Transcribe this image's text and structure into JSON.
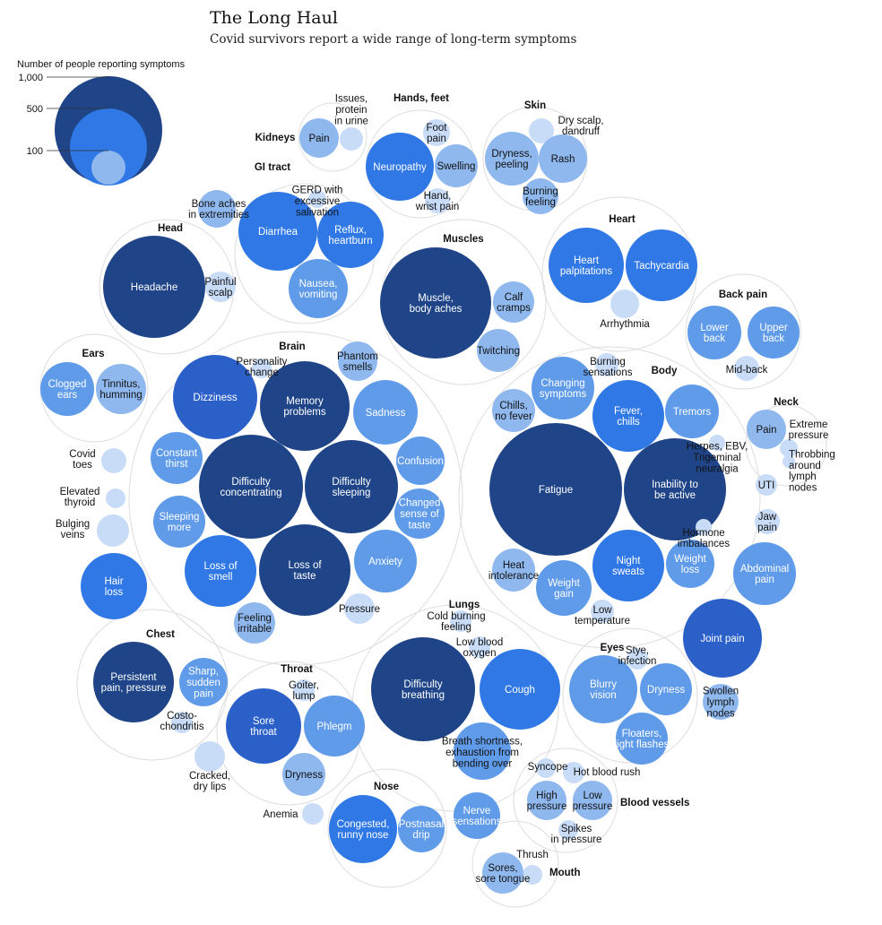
{
  "title": "The Long Haul",
  "subtitle": "Covid survivors report a wide range of long-term symptoms",
  "chart_data": {
    "type": "bubble",
    "legend": {
      "title": "Number of people reporting symptoms",
      "levels": [
        {
          "label": "1,000",
          "value": 1000
        },
        {
          "label": "500",
          "value": 500
        },
        {
          "label": "100",
          "value": 100
        }
      ]
    },
    "colors": {
      "darkest": "#1f4588",
      "dark": "#2b60c9",
      "medium": "#2f78e5",
      "light": "#5f9be8",
      "lighter": "#8fb8ee",
      "lightest": "#c8dcf7",
      "group_outline": "#dddddd",
      "label_dark": "#111111",
      "label_light": "#ffffff"
    },
    "groups": [
      {
        "name": "Kidneys",
        "label": "Kidneys",
        "symptoms": [
          {
            "name": "Pain",
            "lines": [
              "Pain"
            ],
            "value": 120
          },
          {
            "name": "Issues, protein in urine",
            "lines": [
              "Issues,",
              "protein",
              "in urine"
            ],
            "value": 50
          }
        ]
      },
      {
        "name": "Hands, feet",
        "label": "Hands, feet",
        "symptoms": [
          {
            "name": "Neuropathy",
            "lines": [
              "Neuropathy"
            ],
            "value": 500
          },
          {
            "name": "Foot pain",
            "lines": [
              "Foot",
              "pain"
            ],
            "value": 80
          },
          {
            "name": "Swelling",
            "lines": [
              "Swelling"
            ],
            "value": 190
          },
          {
            "name": "Hand, wrist pain",
            "lines": [
              "Hand,",
              "wrist pain"
            ],
            "value": 60
          }
        ]
      },
      {
        "name": "Skin",
        "label": "Skin",
        "symptoms": [
          {
            "name": "Dry scalp, dandruff",
            "lines": [
              "Dry scalp,",
              "dandruff"
            ],
            "value": 60
          },
          {
            "name": "Dryness, peeling",
            "lines": [
              "Dryness,",
              "peeling"
            ],
            "value": 230
          },
          {
            "name": "Rash",
            "lines": [
              "Rash"
            ],
            "value": 220
          },
          {
            "name": "Burning feeling",
            "lines": [
              "Burning",
              "feeling"
            ],
            "value": 130
          }
        ]
      },
      {
        "name": "GI tract",
        "label": "GI tract",
        "symptoms": [
          {
            "name": "Diarrhea",
            "lines": [
              "Diarrhea"
            ],
            "value": 620
          },
          {
            "name": "Reflux, heartburn",
            "lines": [
              "Reflux,",
              "heartburn"
            ],
            "value": 500
          },
          {
            "name": "GERD with excessive salivation",
            "lines": [
              "GERD with",
              "excessive",
              "salivation"
            ],
            "value": 50
          },
          {
            "name": "Nausea, vomiting",
            "lines": [
              "Nausea,",
              "vomiting"
            ],
            "value": 420
          }
        ]
      },
      {
        "name": "Head",
        "label": "Head",
        "symptoms": [
          {
            "name": "Bone aches in extremities",
            "lines": [
              "Bone aches",
              "in extremities"
            ],
            "value": 170
          },
          {
            "name": "Headache",
            "lines": [
              "Headache"
            ],
            "value": 1100
          },
          {
            "name": "Painful scalp",
            "lines": [
              "Painful",
              "scalp"
            ],
            "value": 60
          }
        ]
      },
      {
        "name": "Muscles",
        "label": "Muscles",
        "symptoms": [
          {
            "name": "Muscle, body aches",
            "lines": [
              "Muscle,",
              "body aches"
            ],
            "value": 1200
          },
          {
            "name": "Calf cramps",
            "lines": [
              "Calf",
              "cramps"
            ],
            "value": 200
          },
          {
            "name": "Twitching",
            "lines": [
              "Twitching"
            ],
            "value": 200
          }
        ]
      },
      {
        "name": "Heart",
        "label": "Heart",
        "symptoms": [
          {
            "name": "Heart palpitations",
            "lines": [
              "Heart",
              "palpitations"
            ],
            "value": 650
          },
          {
            "name": "Tachycardia",
            "lines": [
              "Tachycardia"
            ],
            "value": 520
          },
          {
            "name": "Arrhythmia",
            "lines": [
              "Arrhythmia"
            ],
            "value": 90
          }
        ]
      },
      {
        "name": "Back pain",
        "label": "Back pain",
        "symptoms": [
          {
            "name": "Lower back",
            "lines": [
              "Lower",
              "back"
            ],
            "value": 340
          },
          {
            "name": "Upper back",
            "lines": [
              "Upper",
              "back"
            ],
            "value": 320
          },
          {
            "name": "Mid-back",
            "lines": [
              "Mid-back"
            ],
            "value": 80
          }
        ]
      },
      {
        "name": "Ears",
        "label": "Ears",
        "symptoms": [
          {
            "name": "Clogged ears",
            "lines": [
              "Clogged",
              "ears"
            ],
            "value": 280
          },
          {
            "name": "Tinnitus, humming",
            "lines": [
              "Tinnitus,",
              "humming"
            ],
            "value": 240
          }
        ]
      },
      {
        "name": "Brain",
        "label": "Brain",
        "symptoms": [
          {
            "name": "Personality change",
            "lines": [
              "Personality",
              "change"
            ],
            "value": 60
          },
          {
            "name": "Phantom smells",
            "lines": [
              "Phantom",
              "smells"
            ],
            "value": 180
          },
          {
            "name": "Dizziness",
            "lines": [
              "Dizziness"
            ],
            "value": 800
          },
          {
            "name": "Memory problems",
            "lines": [
              "Memory",
              "problems"
            ],
            "value": 860
          },
          {
            "name": "Sadness",
            "lines": [
              "Sadness"
            ],
            "value": 480
          },
          {
            "name": "Constant thirst",
            "lines": [
              "Constant",
              "thirst"
            ],
            "value": 260
          },
          {
            "name": "Difficulty concentrating",
            "lines": [
              "Difficulty",
              "concentrating"
            ],
            "value": 1080
          },
          {
            "name": "Difficulty sleeping",
            "lines": [
              "Difficulty",
              "sleeping"
            ],
            "value": 950
          },
          {
            "name": "Confusion",
            "lines": [
              "Confusion"
            ],
            "value": 260
          },
          {
            "name": "Sleeping more",
            "lines": [
              "Sleeping",
              "more"
            ],
            "value": 260
          },
          {
            "name": "Changed sense of taste",
            "lines": [
              "Changed",
              "sense of",
              "taste"
            ],
            "value": 260
          },
          {
            "name": "Loss of smell",
            "lines": [
              "Loss of",
              "smell"
            ],
            "value": 590
          },
          {
            "name": "Loss of taste",
            "lines": [
              "Loss of",
              "taste"
            ],
            "value": 930
          },
          {
            "name": "Anxiety",
            "lines": [
              "Anxiety"
            ],
            "value": 460
          },
          {
            "name": "Feeling irritable",
            "lines": [
              "Feeling",
              "irritable"
            ],
            "value": 180
          },
          {
            "name": "Pressure",
            "lines": [
              "Pressure"
            ],
            "value": 80
          }
        ]
      },
      {
        "name": "Body",
        "label": "Body",
        "symptoms": [
          {
            "name": "Burning sensations",
            "lines": [
              "Burning",
              "sensations"
            ],
            "value": 60
          },
          {
            "name": "Changing symptoms",
            "lines": [
              "Changing",
              "symptoms"
            ],
            "value": 430
          },
          {
            "name": "Chills, no fever",
            "lines": [
              "Chills,",
              "no fever"
            ],
            "value": 200
          },
          {
            "name": "Fever, chills",
            "lines": [
              "Fever,",
              "chills"
            ],
            "value": 560
          },
          {
            "name": "Tremors",
            "lines": [
              "Tremors"
            ],
            "value": 300
          },
          {
            "name": "Herpes, EBV, Trigeminal neuralgia",
            "lines": [
              "Herpes, EBV,",
              "Trigeminal",
              "neuralgia"
            ],
            "value": 40
          },
          {
            "name": "Fatigue",
            "lines": [
              "Fatigue"
            ],
            "value": 2000
          },
          {
            "name": "Inability to be active",
            "lines": [
              "Inability to",
              "be active"
            ],
            "value": 1150
          },
          {
            "name": "Hormone imbalances",
            "lines": [
              "Hormone",
              "imbalances"
            ],
            "value": 50
          },
          {
            "name": "Weight loss",
            "lines": [
              "Weight",
              "loss"
            ],
            "value": 260
          },
          {
            "name": "Night sweats",
            "lines": [
              "Night",
              "sweats"
            ],
            "value": 600
          },
          {
            "name": "Heat intolerance",
            "lines": [
              "Heat",
              "intolerance"
            ],
            "value": 170
          },
          {
            "name": "Weight gain",
            "lines": [
              "Weight",
              "gain"
            ],
            "value": 390
          },
          {
            "name": "Low temperature",
            "lines": [
              "Low",
              "temperature"
            ],
            "value": 50
          }
        ]
      },
      {
        "name": "Neck",
        "label": "Neck",
        "symptoms": [
          {
            "name": "Pain",
            "lines": [
              "Pain"
            ],
            "value": 160
          },
          {
            "name": "Extreme pressure",
            "lines": [
              "Extreme",
              "pressure"
            ],
            "value": 60
          },
          {
            "name": "Throbbing around lymph nodes",
            "lines": [
              "Throbbing",
              "around",
              "lymph",
              "nodes"
            ],
            "value": 30
          }
        ]
      },
      {
        "name": "Other",
        "label": "",
        "symptoms": [
          {
            "name": "Covid toes",
            "lines": [
              "Covid",
              "toes"
            ],
            "value": 70
          },
          {
            "name": "Elevated thyroid",
            "lines": [
              "Elevated",
              "thyroid"
            ],
            "value": 40
          },
          {
            "name": "Bulging veins",
            "lines": [
              "Bulging",
              "veins"
            ],
            "value": 110
          },
          {
            "name": "Hair loss",
            "lines": [
              "Hair",
              "loss"
            ],
            "value": 520
          },
          {
            "name": "UTI",
            "lines": [
              "UTI"
            ],
            "value": 40
          },
          {
            "name": "Jaw pain",
            "lines": [
              "Jaw",
              "pain"
            ],
            "value": 80
          },
          {
            "name": "Abdominal pain",
            "lines": [
              "Abdominal",
              "pain"
            ],
            "value": 400
          },
          {
            "name": "Joint pain",
            "lines": [
              "Joint pain"
            ],
            "value": 700
          },
          {
            "name": "Swollen lymph nodes",
            "lines": [
              "Swollen",
              "lymph",
              "nodes"
            ],
            "value": 130
          },
          {
            "name": "Cracked, dry lips",
            "lines": [
              "Cracked,",
              "dry lips"
            ],
            "value": 90
          },
          {
            "name": "Anemia",
            "lines": [
              "Anemia"
            ],
            "value": 50
          }
        ]
      },
      {
        "name": "Chest",
        "label": "Chest",
        "symptoms": [
          {
            "name": "Persistent pain, pressure",
            "lines": [
              "Persistent",
              "pain, pressure"
            ],
            "value": 950
          },
          {
            "name": "Sharp, sudden pain",
            "lines": [
              "Sharp,",
              "sudden",
              "pain"
            ],
            "value": 260
          },
          {
            "name": "Costo-chondritis",
            "lines": [
              "Costo-",
              "chondritis"
            ],
            "value": 60
          }
        ]
      },
      {
        "name": "Throat",
        "label": "Throat",
        "symptoms": [
          {
            "name": "Goiter, lump",
            "lines": [
              "Goiter,",
              "lump"
            ],
            "value": 60
          },
          {
            "name": "Sore throat",
            "lines": [
              "Sore",
              "throat"
            ],
            "value": 750
          },
          {
            "name": "Phlegm",
            "lines": [
              "Phlegm"
            ],
            "value": 420
          },
          {
            "name": "Dryness",
            "lines": [
              "Dryness"
            ],
            "value": 200
          }
        ]
      },
      {
        "name": "Lungs",
        "label": "Lungs",
        "symptoms": [
          {
            "name": "Cold burning feeling",
            "lines": [
              "Cold burning",
              "feeling"
            ],
            "value": 50
          },
          {
            "name": "Low blood oxygen",
            "lines": [
              "Low blood",
              "oxygen"
            ],
            "value": 60
          },
          {
            "name": "Difficulty breathing",
            "lines": [
              "Difficulty",
              "breathing"
            ],
            "value": 1550
          },
          {
            "name": "Cough",
            "lines": [
              "Cough"
            ],
            "value": 680
          },
          {
            "name": "Breath shortness, exhaustion from bending over",
            "lines": [
              "Breath shortness,",
              "exhaustion from",
              "bending over"
            ],
            "value": 360
          }
        ]
      },
      {
        "name": "Eyes",
        "label": "Eyes",
        "symptoms": [
          {
            "name": "Stye, infection",
            "lines": [
              "Stye,",
              "infection"
            ],
            "value": 50
          },
          {
            "name": "Blurry vision",
            "lines": [
              "Blurry",
              "vision"
            ],
            "value": 480
          },
          {
            "name": "Dryness",
            "lines": [
              "Dryness"
            ],
            "value": 300
          },
          {
            "name": "Floaters, light flashes",
            "lines": [
              "Floaters,",
              "light flashes"
            ],
            "value": 300
          }
        ]
      },
      {
        "name": "Blood vessels",
        "label": "Blood vessels",
        "symptoms": [
          {
            "name": "Syncope",
            "lines": [
              "Syncope"
            ],
            "value": 60
          },
          {
            "name": "Hot blood rush",
            "lines": [
              "Hot blood rush"
            ],
            "value": 60
          },
          {
            "name": "High pressure",
            "lines": [
              "High",
              "pressure"
            ],
            "value": 200
          },
          {
            "name": "Low pressure",
            "lines": [
              "Low",
              "pressure"
            ],
            "value": 200
          },
          {
            "name": "Spikes in pressure",
            "lines": [
              "Spikes",
              "in pressure"
            ],
            "value": 60
          }
        ]
      },
      {
        "name": "Nose",
        "label": "Nose",
        "symptoms": [
          {
            "name": "Congested, runny nose",
            "lines": [
              "Congested,",
              "runny nose"
            ],
            "value": 560
          },
          {
            "name": "Postnasal drip",
            "lines": [
              "Postnasal",
              "drip"
            ],
            "value": 280
          },
          {
            "name": "Nerve sensations",
            "lines": [
              "Nerve",
              "sensations"
            ],
            "value": 290
          }
        ]
      },
      {
        "name": "Mouth",
        "label": "Mouth",
        "symptoms": [
          {
            "name": "Thrush",
            "lines": [
              "Thrush"
            ],
            "value": 50
          },
          {
            "name": "Sores, sore tongue",
            "lines": [
              "Sores,",
              "sore tongue"
            ],
            "value": 220
          }
        ]
      }
    ]
  }
}
